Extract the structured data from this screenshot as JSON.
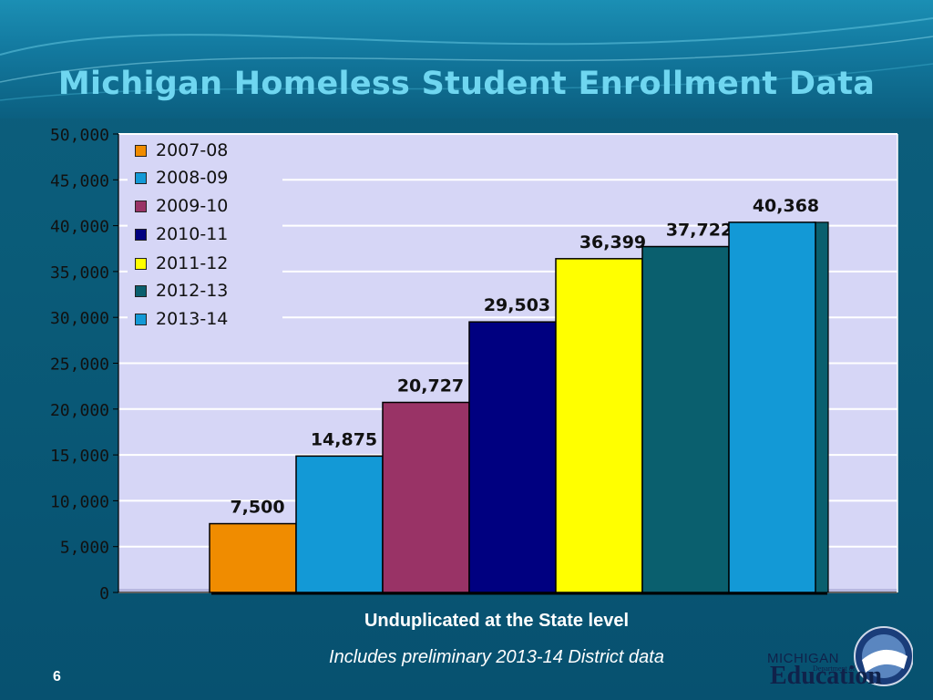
{
  "slide": {
    "title": "Michigan Homeless Student Enrollment Data",
    "subtitle": "Unduplicated at the State level",
    "note": "Includes preliminary 2013-14 District data",
    "page_number": "6",
    "logo": {
      "line1": "MICHIGAN",
      "line2": "Department of",
      "line3": "Education"
    }
  },
  "chart_data": {
    "type": "bar",
    "categories": [
      "2007-08",
      "2008-09",
      "2009-10",
      "2010-11",
      "2011-12",
      "2012-13",
      "2013-14"
    ],
    "values": [
      7500,
      14875,
      20727,
      29503,
      36399,
      37722,
      40368
    ],
    "data_labels": [
      "7,500",
      "14,875",
      "20,727",
      "29,503",
      "36,399",
      "37,722",
      "40,368"
    ],
    "colors": [
      "#f08c00",
      "#1399d6",
      "#993366",
      "#000080",
      "#ffff00",
      "#0a5f6e",
      "#1399d6"
    ],
    "ylim": [
      0,
      50000
    ],
    "yticks": [
      0,
      5000,
      10000,
      15000,
      20000,
      25000,
      30000,
      35000,
      40000,
      45000,
      50000
    ],
    "ytick_labels": [
      "0",
      "5,000",
      "10,000",
      "15,000",
      "20,000",
      "25,000",
      "30,000",
      "35,000",
      "40,000",
      "45,000",
      "50,000"
    ],
    "grid": true,
    "legend_position": "top-left",
    "plot_background": "#d6d6f6"
  }
}
